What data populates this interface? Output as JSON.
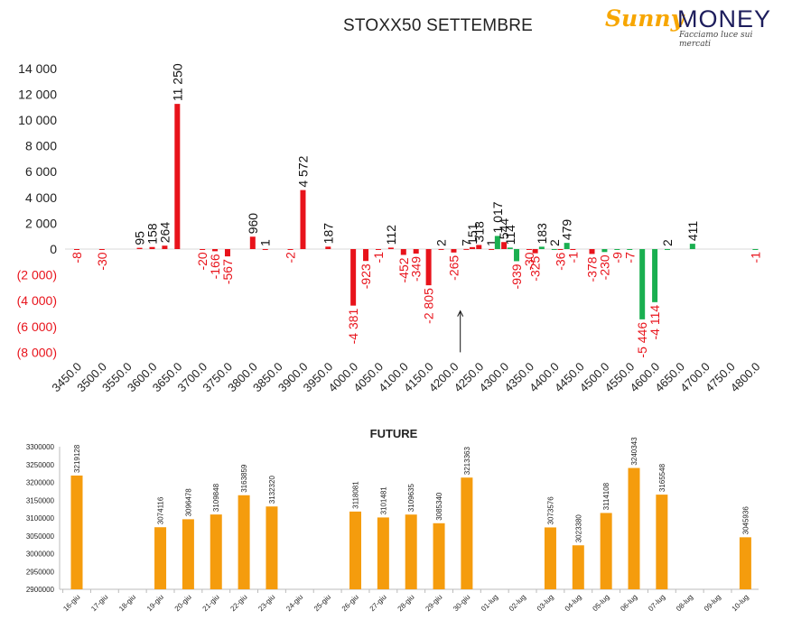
{
  "header": {
    "title": "STOXX50 SETTEMBRE",
    "logo_sunny": "Sunny",
    "logo_money": "MONEY",
    "logo_tagline": "Facciamo luce sui mercati"
  },
  "chart_data": [
    {
      "type": "bar",
      "title": "STOXX50 SETTEMBRE",
      "ylim": [
        -8000,
        14000
      ],
      "yticks": [
        {
          "value": 14000,
          "label": "14 000"
        },
        {
          "value": 12000,
          "label": "12 000"
        },
        {
          "value": 10000,
          "label": "10 000"
        },
        {
          "value": 8000,
          "label": "8 000"
        },
        {
          "value": 6000,
          "label": "6 000"
        },
        {
          "value": 4000,
          "label": "4 000"
        },
        {
          "value": 2000,
          "label": "2 000"
        },
        {
          "value": 0,
          "label": "0"
        },
        {
          "value": -2000,
          "label": "(2 000)"
        },
        {
          "value": -4000,
          "label": "(4 000)"
        },
        {
          "value": -6000,
          "label": "(6 000)"
        },
        {
          "value": -8000,
          "label": "(8 000)"
        }
      ],
      "categories": [
        "3450.0",
        "3500.0",
        "3550.0",
        "3600.0",
        "3650.0",
        "3700.0",
        "3750.0",
        "3800.0",
        "3850.0",
        "3900.0",
        "3950.0",
        "4000.0",
        "4050.0",
        "4100.0",
        "4150.0",
        "4200.0",
        "4250.0",
        "4300.0",
        "4350.0",
        "4400.0",
        "4450.0",
        "4500.0",
        "4550.0",
        "4600.0",
        "4650.0",
        "4700.0",
        "4750.0",
        "4800.0"
      ],
      "bars": [
        {
          "x": 3450,
          "y": -8,
          "label": "-8",
          "color": "red"
        },
        {
          "x": 3500,
          "y": -30,
          "label": "-30",
          "color": "red"
        },
        {
          "x": 3575,
          "y": 95,
          "label": "95",
          "color": "red"
        },
        {
          "x": 3600,
          "y": 158,
          "label": "158",
          "color": "red"
        },
        {
          "x": 3625,
          "y": 264,
          "label": "264",
          "color": "red"
        },
        {
          "x": 3650,
          "y": 11250,
          "label": "11 250",
          "color": "red"
        },
        {
          "x": 3700,
          "y": -20,
          "label": "-20",
          "color": "red"
        },
        {
          "x": 3725,
          "y": -166,
          "label": "-166",
          "color": "red"
        },
        {
          "x": 3750,
          "y": -567,
          "label": "-567",
          "color": "red"
        },
        {
          "x": 3800,
          "y": 960,
          "label": "960",
          "color": "red"
        },
        {
          "x": 3825,
          "y": 1,
          "label": "1",
          "color": "red"
        },
        {
          "x": 3875,
          "y": -2,
          "label": "-2",
          "color": "red"
        },
        {
          "x": 3900,
          "y": 4572,
          "label": "4 572",
          "color": "red"
        },
        {
          "x": 3950,
          "y": 187,
          "label": "187",
          "color": "red"
        },
        {
          "x": 4000,
          "y": -4381,
          "label": "-4 381",
          "color": "red"
        },
        {
          "x": 4025,
          "y": -923,
          "label": "-923",
          "color": "red"
        },
        {
          "x": 4050,
          "y": -1,
          "label": "-1",
          "color": "red"
        },
        {
          "x": 4075,
          "y": 112,
          "label": "112",
          "color": "red"
        },
        {
          "x": 4100,
          "y": -452,
          "label": "-452",
          "color": "red"
        },
        {
          "x": 4125,
          "y": -349,
          "label": "-349",
          "color": "red"
        },
        {
          "x": 4150,
          "y": -2805,
          "label": "-2 805",
          "color": "red"
        },
        {
          "x": 4175,
          "y": 2,
          "label": "2",
          "color": "red"
        },
        {
          "x": 4200,
          "y": -265,
          "label": "-265",
          "color": "red"
        },
        {
          "x": 4225,
          "y": 7,
          "label": "7",
          "color": "red"
        },
        {
          "x": 4237,
          "y": 151,
          "label": "151",
          "color": "red"
        },
        {
          "x": 4250,
          "y": 318,
          "label": "318",
          "color": "red"
        },
        {
          "x": 4275,
          "y": 1,
          "label": "1",
          "color": "red"
        },
        {
          "x": 4287,
          "y": 1017,
          "label": "1 017",
          "color": "green"
        },
        {
          "x": 4300,
          "y": 544,
          "label": "544",
          "color": "red"
        },
        {
          "x": 4312,
          "y": 114,
          "label": "114",
          "color": "green"
        },
        {
          "x": 4325,
          "y": -939,
          "label": "-939",
          "color": "green"
        },
        {
          "x": 4350,
          "y": -30,
          "label": "-30",
          "color": "red"
        },
        {
          "x": 4362,
          "y": -325,
          "label": "-325",
          "color": "red"
        },
        {
          "x": 4375,
          "y": 183,
          "label": "183",
          "color": "green"
        },
        {
          "x": 4400,
          "y": 2,
          "label": "2",
          "color": "green"
        },
        {
          "x": 4412,
          "y": -36,
          "label": "-36",
          "color": "red"
        },
        {
          "x": 4425,
          "y": 479,
          "label": "479",
          "color": "green"
        },
        {
          "x": 4437,
          "y": -1,
          "label": "-1",
          "color": "red"
        },
        {
          "x": 4475,
          "y": -378,
          "label": "-378",
          "color": "red"
        },
        {
          "x": 4500,
          "y": -230,
          "label": "-230",
          "color": "green"
        },
        {
          "x": 4525,
          "y": -9,
          "label": "-9",
          "color": "green"
        },
        {
          "x": 4550,
          "y": -7,
          "label": "-7",
          "color": "green"
        },
        {
          "x": 4575,
          "y": -5446,
          "label": "-5 446",
          "color": "green"
        },
        {
          "x": 4600,
          "y": -4114,
          "label": "-4 114",
          "color": "green"
        },
        {
          "x": 4625,
          "y": 2,
          "label": "2",
          "color": "green"
        },
        {
          "x": 4675,
          "y": 411,
          "label": "411",
          "color": "green"
        },
        {
          "x": 4800,
          "y": -1,
          "label": "-1",
          "color": "green"
        }
      ],
      "annotation": {
        "type": "arrow",
        "x": 4213,
        "y_from": -8000,
        "y_to": -4800
      },
      "colors": {
        "red": "#e8131b",
        "green": "#1aaf50",
        "positive_label": "#111111",
        "negative_label": "#e8131b"
      }
    },
    {
      "type": "bar",
      "title": "FUTURE",
      "ylim": [
        2900000,
        3300000
      ],
      "yticks": [
        3300000,
        3250000,
        3200000,
        3150000,
        3100000,
        3050000,
        3000000,
        2950000,
        2900000
      ],
      "categories": [
        "16-giu",
        "17-giu",
        "18-giu",
        "19-giu",
        "20-giu",
        "21-giu",
        "22-giu",
        "23-giu",
        "24-giu",
        "25-giu",
        "26-giu",
        "27-giu",
        "28-giu",
        "29-giu",
        "30-giu",
        "01-lug",
        "02-lug",
        "03-lug",
        "04-lug",
        "05-lug",
        "06-lug",
        "07-lug",
        "08-lug",
        "09-lug",
        "10-lug"
      ],
      "values": [
        3219128,
        null,
        null,
        3074116,
        3096478,
        3109848,
        3163859,
        3132320,
        null,
        null,
        3118081,
        3101481,
        3109635,
        3085340,
        3213363,
        null,
        null,
        3073576,
        3023380,
        3114108,
        3240343,
        3165548,
        null,
        null,
        3045936
      ],
      "colors": {
        "bar": "#f59c0d",
        "axis": "#bbbbbb"
      }
    }
  ]
}
